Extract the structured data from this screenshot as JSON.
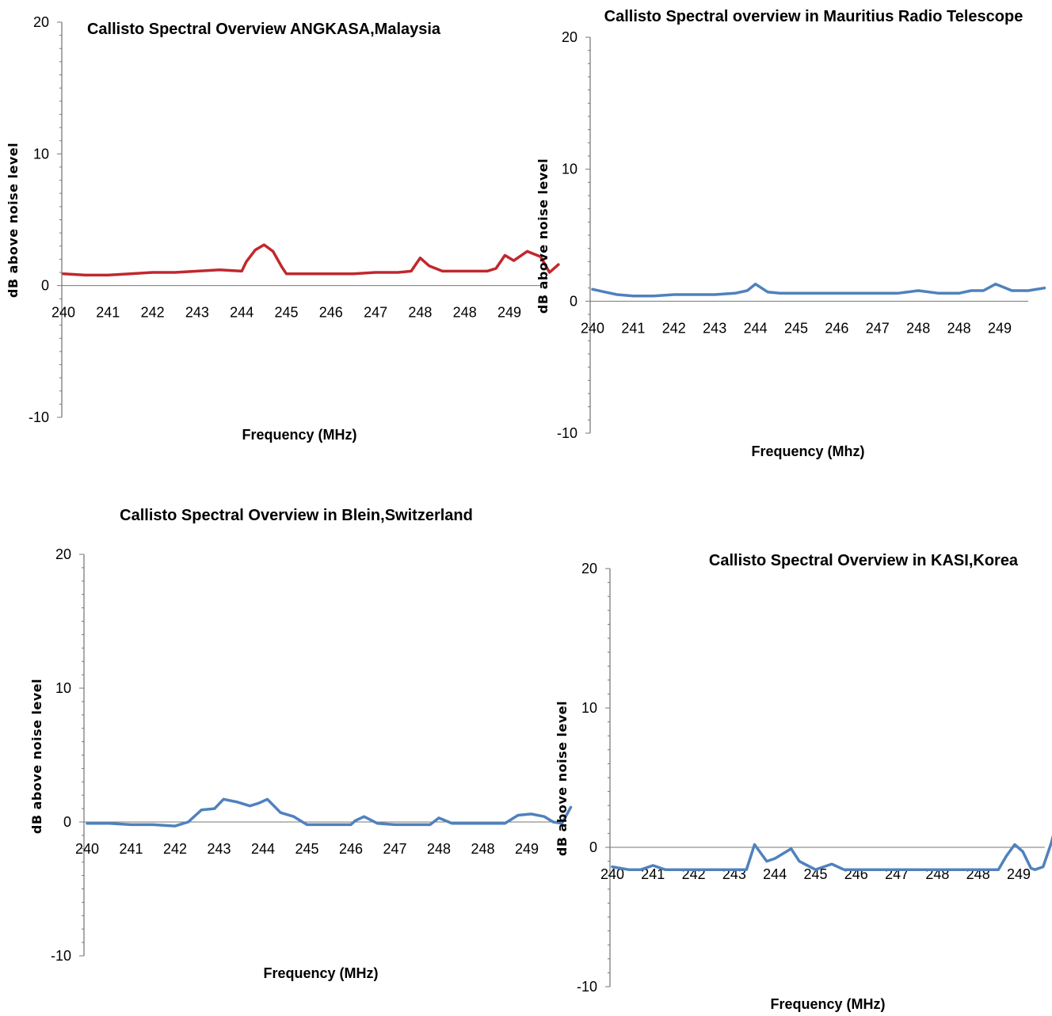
{
  "chart_data": [
    {
      "type": "line",
      "title": "Callisto Spectral Overview ANGKASA,Malaysia",
      "xlabel": "Frequency (MHz)",
      "ylabel": "dB above noise level",
      "ylim": [
        -10,
        20
      ],
      "yticks": [
        "20",
        "10",
        "0",
        "-10"
      ],
      "categories": [
        "240",
        "241",
        "242",
        "243",
        "244",
        "245",
        "246",
        "247",
        "248",
        "248",
        "249"
      ],
      "grid": false,
      "line_color": "#C0282D",
      "series": [
        {
          "x": [
            0,
            0.5,
            1,
            1.5,
            2,
            2.5,
            3,
            3.5,
            4,
            4.1,
            4.3,
            4.5,
            4.7,
            4.9,
            5.0,
            5.5,
            6,
            6.5,
            7,
            7.5,
            7.8,
            8.0,
            8.2,
            8.5,
            9,
            9.5,
            9.7,
            9.9,
            10.1,
            10.4,
            10.7,
            10.9,
            11.1
          ],
          "y": [
            0.9,
            0.8,
            0.8,
            0.9,
            1.0,
            1.0,
            1.1,
            1.2,
            1.1,
            1.8,
            2.7,
            3.1,
            2.6,
            1.4,
            0.9,
            0.9,
            0.9,
            0.9,
            1.0,
            1.0,
            1.1,
            2.1,
            1.5,
            1.1,
            1.1,
            1.1,
            1.3,
            2.3,
            1.9,
            2.6,
            2.2,
            1.0,
            1.6
          ]
        }
      ]
    },
    {
      "type": "line",
      "title": "Callisto Spectral overview in Mauritius Radio Telescope",
      "xlabel": "Frequency (Mhz)",
      "ylabel": "dB above noise level",
      "ylim": [
        -10,
        20
      ],
      "yticks": [
        "20",
        "10",
        "0",
        "-10"
      ],
      "categories": [
        "240",
        "241",
        "242",
        "243",
        "244",
        "245",
        "246",
        "247",
        "248",
        "248",
        "249"
      ],
      "grid": false,
      "line_color": "#4F81BD",
      "series": [
        {
          "x": [
            0,
            0.3,
            0.6,
            1,
            1.5,
            2,
            2.5,
            3,
            3.5,
            3.8,
            4.0,
            4.3,
            4.6,
            5,
            5.5,
            6,
            6.5,
            7,
            7.5,
            8,
            8.5,
            9,
            9.3,
            9.6,
            9.9,
            10.3,
            10.7,
            11.1
          ],
          "y": [
            0.9,
            0.7,
            0.5,
            0.4,
            0.4,
            0.5,
            0.5,
            0.5,
            0.6,
            0.8,
            1.3,
            0.7,
            0.6,
            0.6,
            0.6,
            0.6,
            0.6,
            0.6,
            0.6,
            0.8,
            0.6,
            0.6,
            0.8,
            0.8,
            1.3,
            0.8,
            0.8,
            1.0
          ]
        }
      ]
    },
    {
      "type": "line",
      "title": "Callisto Spectral Overview in Blein,Switzerland",
      "xlabel": "Frequency (MHz)",
      "ylabel": "dB above noise level",
      "ylim": [
        -10,
        20
      ],
      "yticks": [
        "20",
        "10",
        "0",
        "-10"
      ],
      "categories": [
        "240",
        "241",
        "242",
        "243",
        "244",
        "245",
        "246",
        "247",
        "248",
        "248",
        "249"
      ],
      "grid": false,
      "line_color": "#4F81BD",
      "series": [
        {
          "x": [
            0,
            0.5,
            1,
            1.5,
            2,
            2.3,
            2.6,
            2.9,
            3.1,
            3.4,
            3.7,
            3.9,
            4.1,
            4.4,
            4.7,
            5,
            5.5,
            6,
            6.1,
            6.3,
            6.6,
            7,
            7.5,
            7.8,
            8,
            8.3,
            8.6,
            9,
            9.5,
            9.8,
            10.1,
            10.4,
            10.6,
            10.8,
            11.0
          ],
          "y": [
            -0.1,
            -0.1,
            -0.2,
            -0.2,
            -0.3,
            0.0,
            0.9,
            1.0,
            1.7,
            1.5,
            1.2,
            1.4,
            1.7,
            0.7,
            0.4,
            -0.2,
            -0.2,
            -0.2,
            0.1,
            0.4,
            -0.1,
            -0.2,
            -0.2,
            -0.2,
            0.3,
            -0.1,
            -0.1,
            -0.1,
            -0.1,
            0.5,
            0.6,
            0.4,
            0.0,
            -0.1,
            1.1
          ]
        }
      ]
    },
    {
      "type": "line",
      "title": "Callisto Spectral Overview in KASI,Korea",
      "xlabel": "Frequency (MHz)",
      "ylabel": "dB above noise level",
      "ylim": [
        -10,
        20
      ],
      "yticks": [
        "20",
        "10",
        "0",
        "-10"
      ],
      "categories": [
        "240",
        "241",
        "242",
        "243",
        "244",
        "245",
        "246",
        "247",
        "248",
        "248",
        "249"
      ],
      "grid": false,
      "line_color": "#4F81BD",
      "series": [
        {
          "x": [
            0,
            0.4,
            0.7,
            1.0,
            1.3,
            2,
            2.5,
            3,
            3.3,
            3.5,
            3.8,
            4.0,
            4.4,
            4.6,
            5,
            5.2,
            5.4,
            5.7,
            6,
            6.5,
            7,
            7.5,
            8,
            8.5,
            9,
            9.5,
            9.7,
            9.9,
            10.1,
            10.3,
            10.4,
            10.6,
            10.8,
            11.0
          ],
          "y": [
            -1.4,
            -1.6,
            -1.6,
            -1.3,
            -1.6,
            -1.6,
            -1.6,
            -1.6,
            -1.6,
            0.2,
            -1.0,
            -0.8,
            -0.1,
            -1.0,
            -1.6,
            -1.4,
            -1.2,
            -1.6,
            -1.6,
            -1.6,
            -1.6,
            -1.6,
            -1.6,
            -1.6,
            -1.6,
            -1.6,
            -0.6,
            0.2,
            -0.3,
            -1.5,
            -1.6,
            -1.4,
            0.3,
            2.5
          ]
        }
      ]
    }
  ]
}
